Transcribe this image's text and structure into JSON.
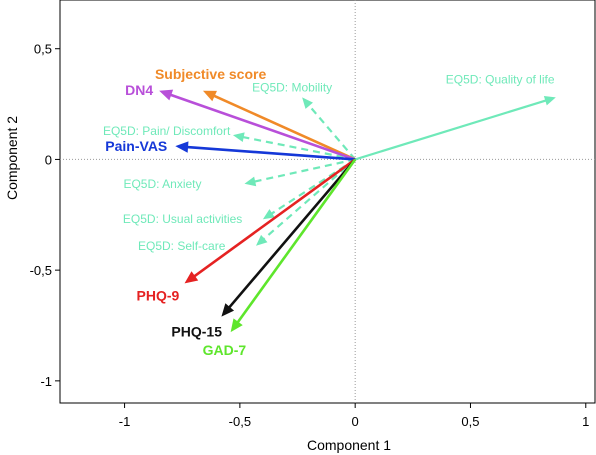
{
  "chart_data": {
    "type": "biplot",
    "xlabel": "Component  1",
    "ylabel": "Component  2",
    "xlim": [
      -1.28,
      1.04
    ],
    "ylim": [
      -1.1,
      0.72
    ],
    "xticks": [
      {
        "v": -1,
        "label": "-1"
      },
      {
        "v": -0.5,
        "label": "-0,5"
      },
      {
        "v": 0,
        "label": "0"
      },
      {
        "v": 0.5,
        "label": "0,5"
      },
      {
        "v": 1,
        "label": "1"
      }
    ],
    "yticks": [
      {
        "v": -1,
        "label": "-1"
      },
      {
        "v": -0.5,
        "label": "-0,5"
      },
      {
        "v": 0,
        "label": "0"
      },
      {
        "v": 0.5,
        "label": "0,5"
      }
    ],
    "vectors": [
      {
        "label": "EQ5D: Quality of life",
        "x": 0.87,
        "y": 0.28,
        "color": "#6fe9b9",
        "style": "solid",
        "weight": "light"
      },
      {
        "label": "EQ5D: Mobility",
        "x": -0.23,
        "y": 0.28,
        "color": "#6fe9b9",
        "style": "dashed",
        "weight": "light"
      },
      {
        "label": "EQ5D: Pain/ Discomfort",
        "x": -0.53,
        "y": 0.11,
        "color": "#6fe9b9",
        "style": "dashed",
        "weight": "light"
      },
      {
        "label": "EQ5D: Anxiety",
        "x": -0.48,
        "y": -0.11,
        "color": "#6fe9b9",
        "style": "dashed",
        "weight": "light"
      },
      {
        "label": "EQ5D: Usual activities",
        "x": -0.4,
        "y": -0.27,
        "color": "#6fe9b9",
        "style": "dashed",
        "weight": "light"
      },
      {
        "label": "EQ5D: Self-care",
        "x": -0.43,
        "y": -0.39,
        "color": "#6fe9b9",
        "style": "dashed",
        "weight": "light"
      },
      {
        "label": "Subjective score",
        "x": -0.66,
        "y": 0.31,
        "color": "#f08a28",
        "style": "solid",
        "weight": "bold"
      },
      {
        "label": "DN4",
        "x": -0.85,
        "y": 0.31,
        "color": "#b84fd9",
        "style": "solid",
        "weight": "bold"
      },
      {
        "label": "Pain-VAS",
        "x": -0.78,
        "y": 0.06,
        "color": "#1538d8",
        "style": "solid",
        "weight": "bold"
      },
      {
        "label": "PHQ-9",
        "x": -0.74,
        "y": -0.56,
        "color": "#e52222",
        "style": "solid",
        "weight": "bold"
      },
      {
        "label": "PHQ-15",
        "x": -0.58,
        "y": -0.71,
        "color": "#111111",
        "style": "solid",
        "weight": "bold"
      },
      {
        "label": "GAD-7",
        "x": -0.54,
        "y": -0.78,
        "color": "#5ee62c",
        "style": "solid",
        "weight": "bold"
      }
    ]
  }
}
